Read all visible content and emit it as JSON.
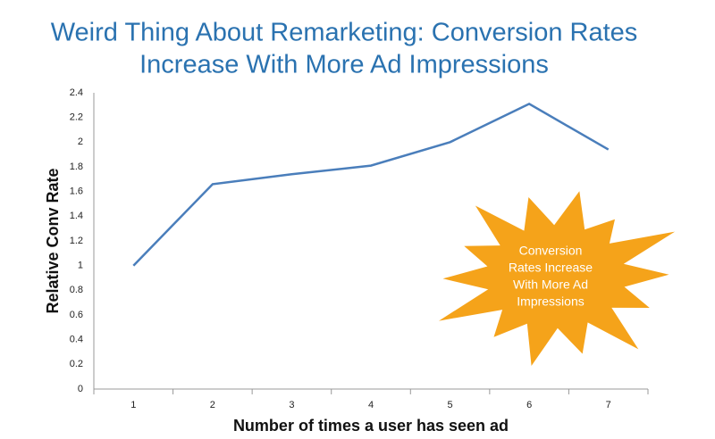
{
  "chart_data": {
    "type": "line",
    "title": [
      "Weird Thing About Remarketing: Conversion Rates",
      "Increase With More Ad Impressions"
    ],
    "xlabel": "Number of times a user has seen ad",
    "ylabel": "Relative Conv Rate",
    "categories": [
      "1",
      "2",
      "3",
      "4",
      "5",
      "6",
      "7"
    ],
    "values": [
      1,
      1.66,
      1.74,
      1.81,
      2.0,
      2.31,
      1.94
    ],
    "color": "#4a7ebb",
    "ylim": [
      0,
      2.4
    ],
    "yticks": [
      0,
      0.2,
      0.4,
      0.6,
      0.8,
      1,
      1.2,
      1.4,
      1.6,
      1.8,
      2,
      2.2,
      2.4
    ],
    "grid": false,
    "annotation": [
      "Conversion",
      "Rates Increase",
      "With More Ad",
      "Impressions"
    ]
  }
}
